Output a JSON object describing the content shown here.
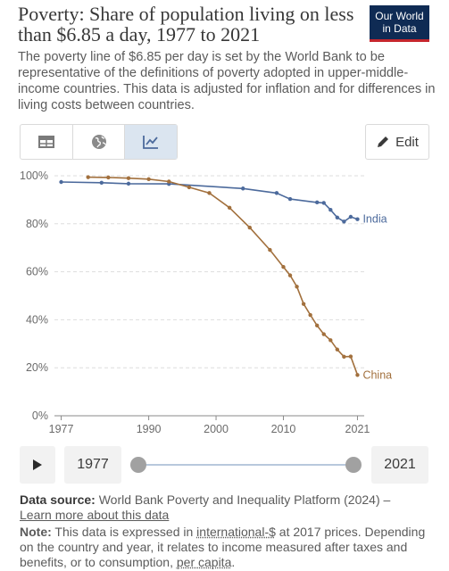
{
  "header": {
    "title": "Poverty: Share of population living on less than $6.85 a day, 1977 to 2021",
    "subtitle": "The poverty line of $6.85 per day is set by the World Bank to be representative of the definitions of poverty adopted in upper-middle-income countries. This data is adjusted for inflation and for differences in living costs between countries.",
    "logo_line1": "Our World",
    "logo_line2": "in Data"
  },
  "toolbar": {
    "tabs": [
      {
        "icon": "table-icon",
        "active": false
      },
      {
        "icon": "globe-icon",
        "active": false
      },
      {
        "icon": "line-chart-icon",
        "active": true
      }
    ],
    "edit_label": "Edit"
  },
  "timeline": {
    "start_year": "1977",
    "end_year": "2021",
    "start_fraction": 0,
    "end_fraction": 1
  },
  "footer": {
    "source_label": "Data source:",
    "source_text": " World Bank Poverty and Inequality Platform (2024) –",
    "learn_more": "Learn more about this data",
    "note_label": "Note:",
    "note_pre": " This data is expressed in ",
    "note_link1": "international-$",
    "note_mid": " at 2017 prices. Depending on the country and year, it relates to income measured after taxes and benefits, or to consumption, ",
    "note_link2": "per capita",
    "note_end": "."
  },
  "chart_data": {
    "type": "line",
    "ylim": [
      0,
      100
    ],
    "xlim": [
      1976,
      2022
    ],
    "y_ticks": [
      0,
      20,
      40,
      60,
      80,
      100
    ],
    "y_tick_labels": [
      "0%",
      "20%",
      "40%",
      "60%",
      "80%",
      "100%"
    ],
    "x_ticks": [
      1977,
      1990,
      2000,
      2010,
      2021
    ],
    "x_tick_labels": [
      "1977",
      "1990",
      "2000",
      "2010",
      "2021"
    ],
    "grid": "horizontal dashed",
    "series": [
      {
        "name": "India",
        "color": "#4c6a9c",
        "x": [
          1977,
          1983,
          1987,
          1993,
          2004,
          2009,
          2011,
          2015,
          2016,
          2017,
          2018,
          2019,
          2020,
          2021
        ],
        "y": [
          97.4,
          97.1,
          96.7,
          96.6,
          94.7,
          92.8,
          90.3,
          88.9,
          88.7,
          85.8,
          82.6,
          80.9,
          82.9,
          81.9
        ]
      },
      {
        "name": "China",
        "color": "#a2703d",
        "x": [
          1981,
          1984,
          1987,
          1990,
          1993,
          1996,
          1999,
          2002,
          2005,
          2008,
          2010,
          2011,
          2012,
          2013,
          2014,
          2015,
          2016,
          2017,
          2018,
          2019,
          2020,
          2021
        ],
        "y": [
          99.4,
          99.3,
          99.0,
          98.6,
          97.6,
          95.2,
          92.8,
          86.7,
          78.4,
          69.1,
          62.0,
          58.5,
          53.8,
          46.6,
          42.0,
          37.6,
          34.0,
          31.5,
          27.6,
          24.6,
          24.7,
          17.0
        ]
      }
    ]
  }
}
